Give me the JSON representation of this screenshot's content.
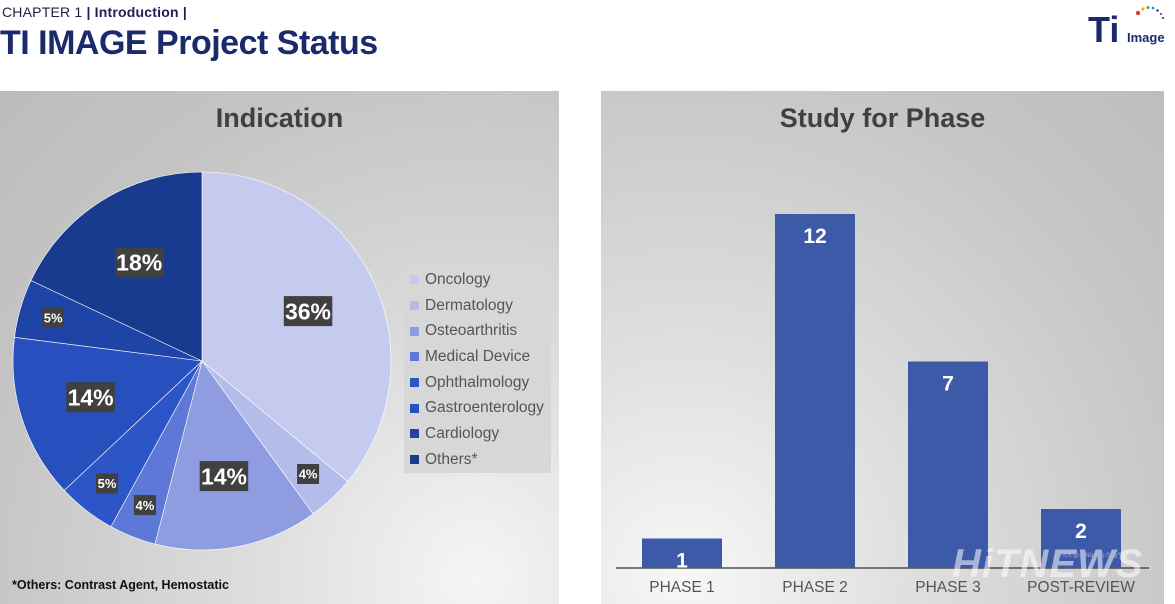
{
  "header": {
    "chapter": "CHAPTER 1",
    "section": "| Introduction |",
    "title": "TI IMAGE Project Status",
    "logo_main": "Ti",
    "logo_sub": "Image"
  },
  "colors": {
    "title": "#1b2a6b",
    "bar": "#3c5aa8",
    "slices": [
      "#c5cbee",
      "#b4bcea",
      "#8f9de0",
      "#5d78d6",
      "#2c56c8",
      "#2750be",
      "#1f44a8",
      "#183b8f"
    ]
  },
  "footnote": "*Others: Contrast Agent, Hemostatic",
  "watermark": {
    "main": "HiTNEWS",
    "sub": "바이오헬스 No.1 뉴스 플랫폼"
  },
  "chart_data": [
    {
      "type": "pie",
      "title": "Indication",
      "legend_position": "right",
      "categories": [
        "Oncology",
        "Dermatology",
        "Osteoarthritis",
        "Medical Device",
        "Ophthalmology",
        "Gastroenterology",
        "Cardiology",
        "Others*"
      ],
      "values": [
        36,
        4,
        14,
        4,
        5,
        14,
        5,
        18
      ],
      "labels": [
        "36%",
        "4%",
        "14%",
        "4%",
        "5%",
        "14%",
        "5%",
        "18%"
      ]
    },
    {
      "type": "bar",
      "title": "Study for Phase",
      "categories": [
        "PHASE 1",
        "PHASE 2",
        "PHASE 3",
        "POST-REVIEW"
      ],
      "values": [
        1,
        12,
        7,
        2
      ],
      "ylim": [
        0,
        14
      ],
      "grid": false
    }
  ]
}
